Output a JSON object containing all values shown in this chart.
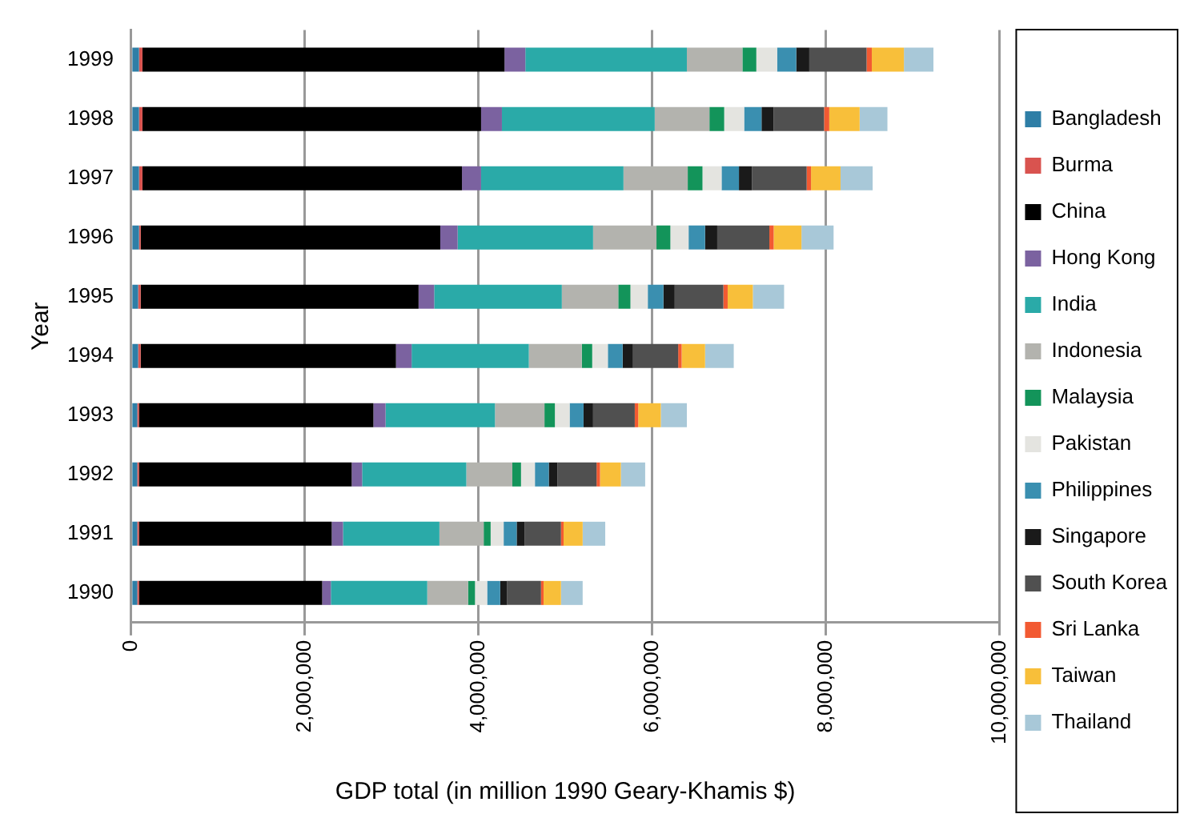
{
  "chart_data": {
    "type": "bar",
    "orientation": "horizontal",
    "stacked": true,
    "xlabel": "GDP total (in million 1990 Geary-Khamis $)",
    "ylabel": "Year",
    "categories": [
      "1999",
      "1998",
      "1997",
      "1996",
      "1995",
      "1994",
      "1993",
      "1992",
      "1991",
      "1990"
    ],
    "xlim": [
      0,
      10000000
    ],
    "xticks": [
      {
        "value": 0,
        "label": "0"
      },
      {
        "value": 2000000,
        "label": "2,000,000"
      },
      {
        "value": 4000000,
        "label": "4,000,000"
      },
      {
        "value": 6000000,
        "label": "6,000,000"
      },
      {
        "value": 8000000,
        "label": "8,000,000"
      },
      {
        "value": 10000000,
        "label": "10,000,000"
      }
    ],
    "grid": "x",
    "legend": "right",
    "series": [
      {
        "name": "Bangladesh",
        "color": "#2e7ea6",
        "values": [
          90000,
          90000,
          90000,
          90000,
          80000,
          80000,
          70000,
          70000,
          70000,
          70000
        ]
      },
      {
        "name": "Burma",
        "color": "#d9534f",
        "values": [
          40000,
          40000,
          40000,
          20000,
          30000,
          30000,
          20000,
          20000,
          20000,
          20000
        ]
      },
      {
        "name": "China",
        "color": "#000000",
        "values": [
          4170000,
          3900000,
          3680000,
          3450000,
          3200000,
          2940000,
          2700000,
          2450000,
          2220000,
          2110000
        ]
      },
      {
        "name": "Hong Kong",
        "color": "#7b62a0",
        "values": [
          240000,
          240000,
          220000,
          200000,
          180000,
          180000,
          140000,
          120000,
          130000,
          100000
        ]
      },
      {
        "name": "India",
        "color": "#2aaaa8",
        "values": [
          1860000,
          1760000,
          1640000,
          1560000,
          1470000,
          1350000,
          1260000,
          1200000,
          1110000,
          1110000
        ]
      },
      {
        "name": "Indonesia",
        "color": "#b3b3ae",
        "values": [
          640000,
          630000,
          740000,
          730000,
          650000,
          610000,
          570000,
          530000,
          510000,
          470000
        ]
      },
      {
        "name": "Malaysia",
        "color": "#13945a",
        "values": [
          160000,
          170000,
          170000,
          160000,
          140000,
          120000,
          120000,
          100000,
          80000,
          80000
        ]
      },
      {
        "name": "Pakistan",
        "color": "#e4e4e0",
        "values": [
          240000,
          230000,
          220000,
          210000,
          200000,
          180000,
          170000,
          160000,
          150000,
          140000
        ]
      },
      {
        "name": "Philippines",
        "color": "#3a8fb0",
        "values": [
          220000,
          200000,
          200000,
          190000,
          180000,
          170000,
          160000,
          160000,
          150000,
          150000
        ]
      },
      {
        "name": "Singapore",
        "color": "#1a1a1a",
        "values": [
          150000,
          140000,
          150000,
          140000,
          130000,
          120000,
          110000,
          100000,
          90000,
          80000
        ]
      },
      {
        "name": "South Korea",
        "color": "#505050",
        "values": [
          660000,
          580000,
          630000,
          600000,
          560000,
          520000,
          480000,
          450000,
          420000,
          390000
        ]
      },
      {
        "name": "Sri Lanka",
        "color": "#f25a32",
        "values": [
          60000,
          60000,
          50000,
          50000,
          50000,
          40000,
          40000,
          40000,
          30000,
          30000
        ]
      },
      {
        "name": "Taiwan",
        "color": "#f8bf3a",
        "values": [
          370000,
          350000,
          340000,
          320000,
          290000,
          270000,
          260000,
          240000,
          220000,
          200000
        ]
      },
      {
        "name": "Thailand",
        "color": "#a8c8d8",
        "values": [
          340000,
          320000,
          370000,
          370000,
          360000,
          330000,
          300000,
          280000,
          260000,
          250000
        ]
      }
    ]
  }
}
